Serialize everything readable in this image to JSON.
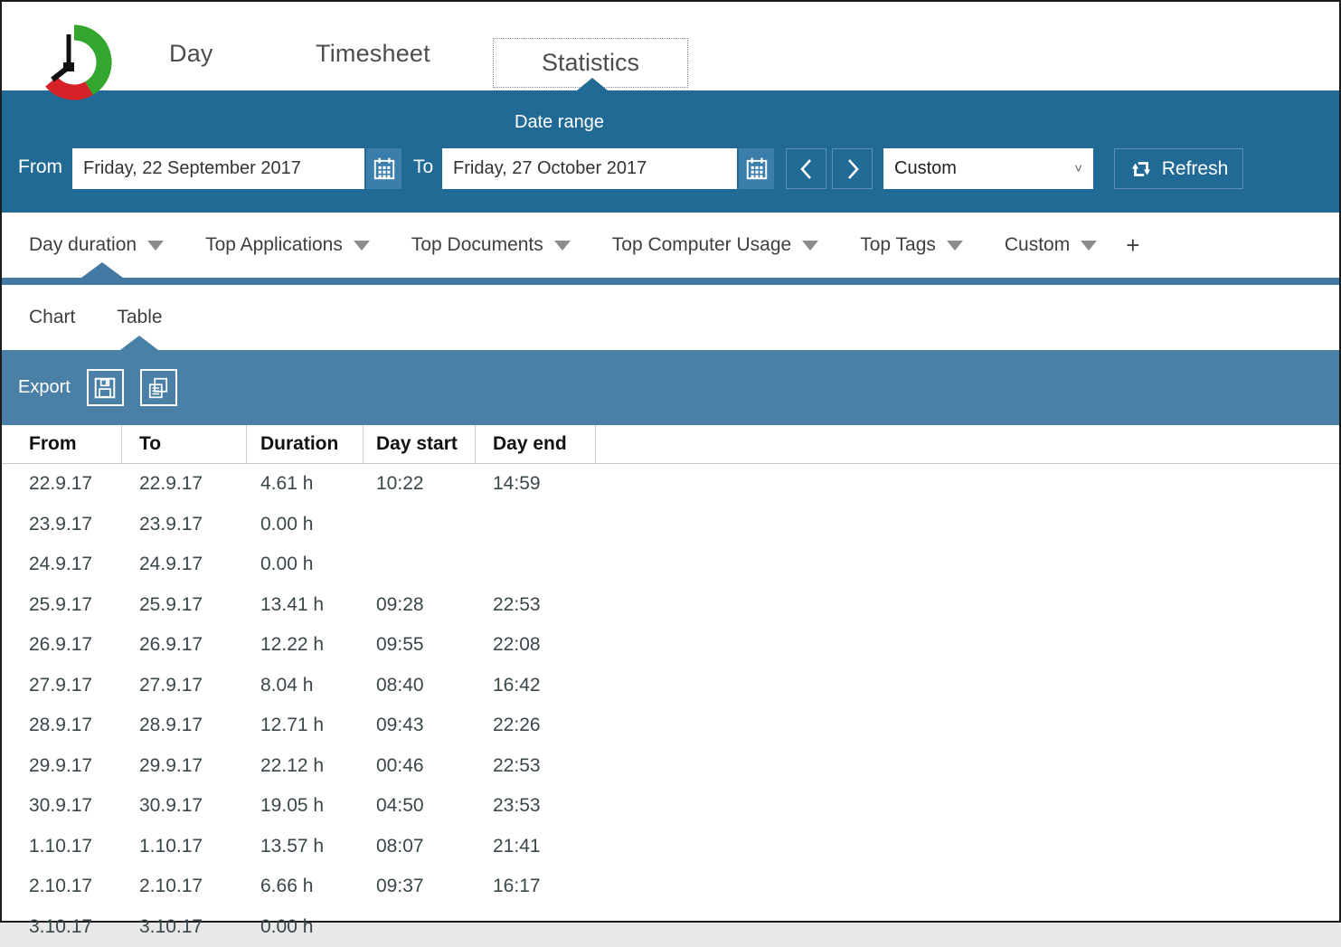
{
  "colors": {
    "topbar_blue": "#216a96",
    "rule_blue": "#4278a1",
    "export_blue": "#4a80a6",
    "logo_green": "#33a62e",
    "logo_red": "#d62128",
    "row_text": "#39474b"
  },
  "header": {
    "tabs": [
      {
        "label": "Day",
        "selected": false
      },
      {
        "label": "Timesheet",
        "selected": false
      },
      {
        "label": "Statistics",
        "selected": true
      }
    ]
  },
  "date_range": {
    "title": "Date range",
    "from_label": "From",
    "from_value": "Friday, 22 September 2017",
    "to_label": "To",
    "to_value": "Friday, 27 October 2017",
    "preset_value": "Custom",
    "refresh_label": "Refresh"
  },
  "stat_tabs": {
    "items": [
      {
        "label": "Day duration",
        "selected": true
      },
      {
        "label": "Top Applications",
        "selected": false
      },
      {
        "label": "Top Documents",
        "selected": false
      },
      {
        "label": "Top Computer Usage",
        "selected": false
      },
      {
        "label": "Top Tags",
        "selected": false
      },
      {
        "label": "Custom",
        "selected": false
      }
    ],
    "add_label": "+"
  },
  "view_tabs": {
    "items": [
      {
        "label": "Chart",
        "selected": false
      },
      {
        "label": "Table",
        "selected": true
      }
    ]
  },
  "export": {
    "label": "Export"
  },
  "table": {
    "columns": [
      "From",
      "To",
      "Duration",
      "Day start",
      "Day end"
    ],
    "rows": [
      [
        "22.9.17",
        "22.9.17",
        "4.61 h",
        "10:22",
        "14:59"
      ],
      [
        "23.9.17",
        "23.9.17",
        "0.00 h",
        "",
        ""
      ],
      [
        "24.9.17",
        "24.9.17",
        "0.00 h",
        "",
        ""
      ],
      [
        "25.9.17",
        "25.9.17",
        "13.41 h",
        "09:28",
        "22:53"
      ],
      [
        "26.9.17",
        "26.9.17",
        "12.22 h",
        "09:55",
        "22:08"
      ],
      [
        "27.9.17",
        "27.9.17",
        "8.04 h",
        "08:40",
        "16:42"
      ],
      [
        "28.9.17",
        "28.9.17",
        "12.71 h",
        "09:43",
        "22:26"
      ],
      [
        "29.9.17",
        "29.9.17",
        "22.12 h",
        "00:46",
        "22:53"
      ],
      [
        "30.9.17",
        "30.9.17",
        "19.05 h",
        "04:50",
        "23:53"
      ],
      [
        "1.10.17",
        "1.10.17",
        "13.57 h",
        "08:07",
        "21:41"
      ],
      [
        "2.10.17",
        "2.10.17",
        "6.66 h",
        "09:37",
        "16:17"
      ],
      [
        "3.10.17",
        "3.10.17",
        "0.00 h",
        "",
        ""
      ]
    ]
  }
}
